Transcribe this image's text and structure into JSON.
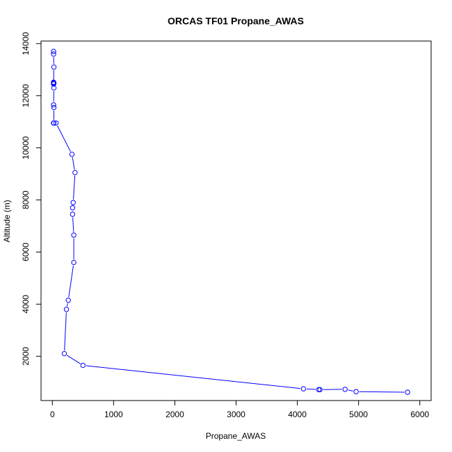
{
  "colors": {
    "series": "#0000ff",
    "axis": "#000000",
    "background": "#ffffff"
  },
  "chart_data": {
    "type": "line",
    "title": "ORCAS TF01 Propane_AWAS",
    "xlabel": "Propane_AWAS",
    "ylabel": "Altitude (m)",
    "xlim": [
      -185,
      6185
    ],
    "ylim": [
      300,
      14100
    ],
    "x_ticks": [
      0,
      1000,
      2000,
      3000,
      4000,
      5000,
      6000
    ],
    "y_ticks": [
      2000,
      4000,
      6000,
      8000,
      10000,
      12000,
      14000
    ],
    "grid": false,
    "marker": "open-circle",
    "series": [
      {
        "x": [
          20,
          20,
          25,
          20,
          20,
          25,
          20,
          25,
          20,
          25,
          25,
          20,
          60,
          320,
          370,
          340,
          330,
          330,
          350,
          350,
          260,
          230,
          195,
          500,
          4100,
          4350,
          4370,
          4780,
          4960,
          5800
        ],
        "y": [
          13700,
          13600,
          13100,
          12500,
          12520,
          12480,
          12450,
          12300,
          11650,
          11550,
          10950,
          10950,
          10950,
          9750,
          9050,
          7900,
          7700,
          7450,
          6650,
          5600,
          4150,
          3800,
          2100,
          1650,
          750,
          720,
          720,
          730,
          640,
          620
        ]
      }
    ]
  }
}
